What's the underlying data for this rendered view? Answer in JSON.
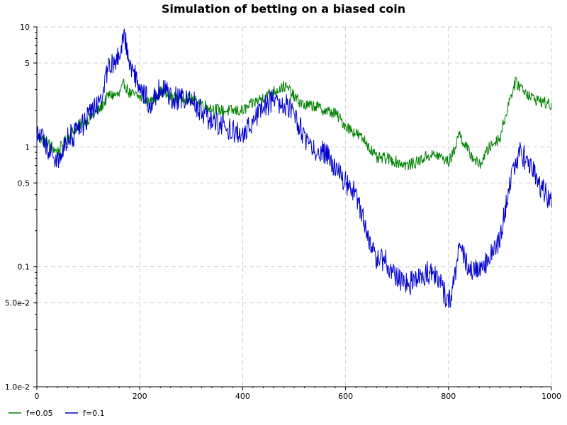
{
  "chart_data": {
    "type": "line",
    "title": "Simulation of betting on a biased coin",
    "xlabel": "",
    "ylabel": "",
    "xlim": [
      0,
      1000
    ],
    "ylim": [
      0.01,
      10
    ],
    "yscale": "log",
    "grid": true,
    "legend_position": "bottom-left",
    "x_ticks": [
      {
        "value": 0,
        "label": "0"
      },
      {
        "value": 200,
        "label": "200"
      },
      {
        "value": 400,
        "label": "400"
      },
      {
        "value": 600,
        "label": "600"
      },
      {
        "value": 800,
        "label": "800"
      },
      {
        "value": 1000,
        "label": "1000"
      }
    ],
    "y_ticks": [
      {
        "value": 10,
        "label": "10"
      },
      {
        "value": 5,
        "label": "5"
      },
      {
        "value": 1,
        "label": "1"
      },
      {
        "value": 0.5,
        "label": "0.5"
      },
      {
        "value": 0.1,
        "label": "0.1"
      },
      {
        "value": 0.05,
        "label": "5.0e-2"
      },
      {
        "value": 0.01,
        "label": "1.0e-2"
      }
    ],
    "series": [
      {
        "name": "f=0.05",
        "color": "#008000",
        "x": [
          0,
          20,
          40,
          60,
          80,
          100,
          120,
          140,
          160,
          170,
          180,
          200,
          220,
          240,
          260,
          280,
          300,
          320,
          340,
          360,
          380,
          400,
          420,
          440,
          460,
          480,
          490,
          500,
          520,
          540,
          560,
          580,
          600,
          620,
          640,
          660,
          680,
          700,
          720,
          740,
          760,
          780,
          800,
          810,
          820,
          840,
          860,
          880,
          900,
          920,
          930,
          940,
          960,
          980,
          1000
        ],
        "y": [
          1.2,
          1.1,
          0.9,
          1.2,
          1.5,
          1.7,
          2.0,
          2.7,
          2.7,
          3.4,
          2.8,
          2.6,
          2.3,
          2.9,
          2.6,
          2.6,
          2.5,
          2.3,
          2.1,
          2.0,
          2.0,
          2.0,
          2.3,
          2.6,
          2.9,
          3.2,
          3.0,
          2.6,
          2.2,
          2.2,
          2.0,
          1.9,
          1.5,
          1.3,
          1.1,
          0.8,
          0.8,
          0.75,
          0.7,
          0.75,
          0.85,
          0.85,
          0.75,
          0.9,
          1.3,
          0.9,
          0.7,
          1.0,
          1.2,
          2.6,
          3.4,
          3.2,
          2.6,
          2.4,
          2.2
        ]
      },
      {
        "name": "f=0.1",
        "color": "#0000cc",
        "x": [
          0,
          20,
          40,
          60,
          80,
          100,
          120,
          140,
          160,
          170,
          180,
          200,
          220,
          240,
          260,
          280,
          300,
          320,
          340,
          360,
          380,
          400,
          420,
          440,
          460,
          480,
          490,
          500,
          520,
          540,
          560,
          580,
          600,
          620,
          640,
          660,
          680,
          700,
          720,
          740,
          760,
          780,
          800,
          810,
          820,
          840,
          860,
          880,
          900,
          920,
          930,
          940,
          960,
          980,
          1000
        ],
        "y": [
          1.3,
          1.0,
          0.75,
          1.2,
          1.3,
          1.8,
          2.3,
          4.5,
          6.0,
          8.5,
          5.0,
          3.2,
          2.3,
          3.2,
          2.6,
          2.5,
          2.5,
          2.0,
          1.6,
          1.5,
          1.4,
          1.2,
          1.7,
          2.2,
          2.4,
          2.3,
          2.1,
          1.8,
          1.2,
          0.9,
          0.9,
          0.65,
          0.5,
          0.4,
          0.2,
          0.12,
          0.11,
          0.08,
          0.07,
          0.08,
          0.09,
          0.08,
          0.05,
          0.07,
          0.15,
          0.1,
          0.09,
          0.12,
          0.17,
          0.5,
          0.75,
          0.9,
          0.7,
          0.45,
          0.35
        ]
      }
    ]
  }
}
